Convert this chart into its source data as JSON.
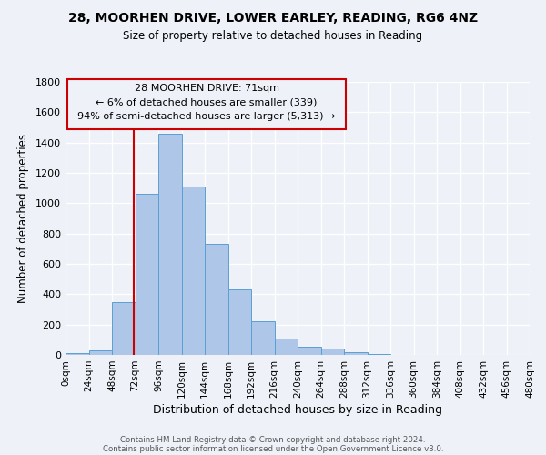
{
  "title": "28, MOORHEN DRIVE, LOWER EARLEY, READING, RG6 4NZ",
  "subtitle": "Size of property relative to detached houses in Reading",
  "xlabel": "Distribution of detached houses by size in Reading",
  "ylabel": "Number of detached properties",
  "bar_color": "#aec6e8",
  "bar_edge_color": "#5a9fd4",
  "bin_edges": [
    0,
    24,
    48,
    72,
    96,
    120,
    144,
    168,
    192,
    216,
    240,
    264,
    288,
    312,
    336,
    360,
    384,
    408,
    432,
    456,
    480
  ],
  "bar_heights": [
    15,
    30,
    350,
    1060,
    1460,
    1110,
    735,
    430,
    225,
    110,
    55,
    40,
    17,
    5,
    2,
    1,
    0,
    0,
    0,
    0
  ],
  "tick_labels": [
    "0sqm",
    "24sqm",
    "48sqm",
    "72sqm",
    "96sqm",
    "120sqm",
    "144sqm",
    "168sqm",
    "192sqm",
    "216sqm",
    "240sqm",
    "264sqm",
    "288sqm",
    "312sqm",
    "336sqm",
    "360sqm",
    "384sqm",
    "408sqm",
    "432sqm",
    "456sqm",
    "480sqm"
  ],
  "ylim": [
    0,
    1800
  ],
  "yticks": [
    0,
    200,
    400,
    600,
    800,
    1000,
    1200,
    1400,
    1600,
    1800
  ],
  "property_line_x": 71,
  "ann_line1": "28 MOORHEN DRIVE: 71sqm",
  "ann_line2": "← 6% of detached houses are smaller (339)",
  "ann_line3": "94% of semi-detached houses are larger (5,313) →",
  "line_color": "#cc0000",
  "footer_line1": "Contains HM Land Registry data © Crown copyright and database right 2024.",
  "footer_line2": "Contains public sector information licensed under the Open Government Licence v3.0.",
  "background_color": "#eef2f8"
}
